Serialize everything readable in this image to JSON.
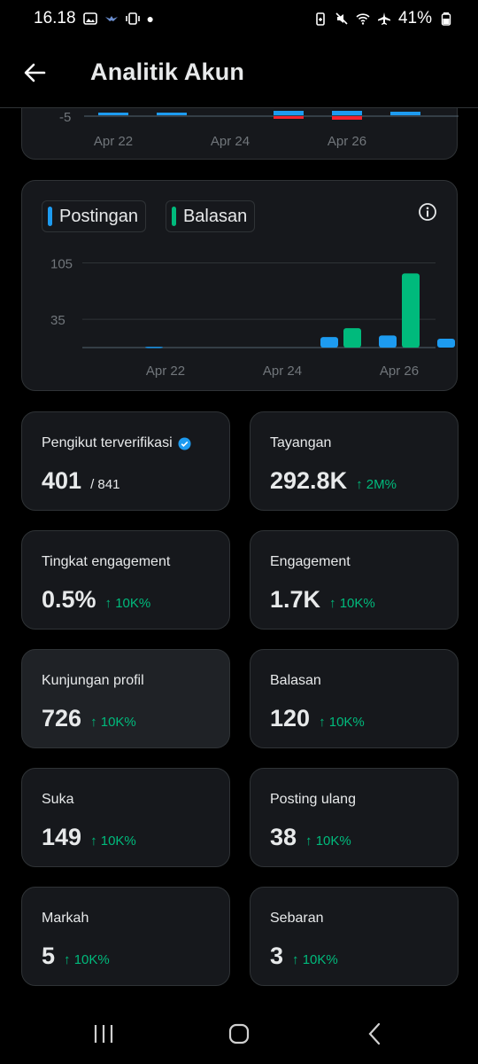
{
  "status_bar": {
    "time": "16.18",
    "battery": "41%"
  },
  "header": {
    "title": "Analitik Akun"
  },
  "top_chart": {
    "y_tick": "-5",
    "x_ticks": [
      "Apr 22",
      "Apr 24",
      "Apr 26"
    ],
    "colors": {
      "positive": "#1d9bf0",
      "negative": "#f4212e"
    }
  },
  "chart_data": {
    "type": "bar",
    "categories": [
      "Apr 21",
      "Apr 22",
      "Apr 23",
      "Apr 24",
      "Apr 25",
      "Apr 26",
      "Apr 27"
    ],
    "x_ticks": [
      "Apr 22",
      "Apr 24",
      "Apr 26"
    ],
    "y_ticks": [
      "105",
      "35"
    ],
    "y_tick_values": [
      105,
      35
    ],
    "ylim": [
      0,
      110
    ],
    "grid": true,
    "legend_position": "top-left",
    "series": [
      {
        "name": "Postingan",
        "color": "#1d9bf0",
        "values": [
          0,
          1,
          0,
          0,
          13,
          15,
          11
        ]
      },
      {
        "name": "Balasan",
        "color": "#00ba7c",
        "values": [
          0,
          0,
          0,
          0,
          24,
          92,
          94
        ]
      }
    ]
  },
  "stats": [
    {
      "label": "Pengikut terverifikasi",
      "value": "401",
      "sub": "/ 841",
      "verified": true
    },
    {
      "label": "Tayangan",
      "value": "292.8K",
      "change": "↑ 2M%"
    },
    {
      "label": "Tingkat engagement",
      "value": "0.5%",
      "change": "↑ 10K%"
    },
    {
      "label": "Engagement",
      "value": "1.7K",
      "change": "↑ 10K%"
    },
    {
      "label": "Kunjungan profil",
      "value": "726",
      "change": "↑ 10K%"
    },
    {
      "label": "Balasan",
      "value": "120",
      "change": "↑ 10K%"
    },
    {
      "label": "Suka",
      "value": "149",
      "change": "↑ 10K%"
    },
    {
      "label": "Posting ulang",
      "value": "38",
      "change": "↑ 10K%"
    },
    {
      "label": "Markah",
      "value": "5",
      "change": "↑ 10K%"
    },
    {
      "label": "Sebaran",
      "value": "3",
      "change": "↑ 10K%"
    }
  ],
  "colors": {
    "accent": "#1d9bf0",
    "positive": "#00ba7c",
    "card": "#16181c",
    "border": "#2f3336"
  }
}
